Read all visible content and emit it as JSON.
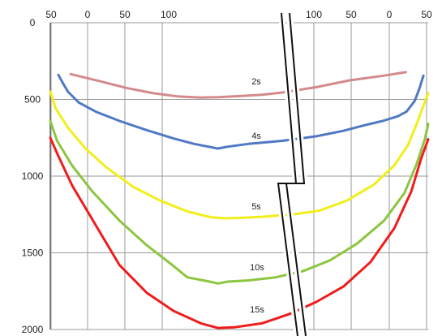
{
  "chart_data": {
    "type": "line",
    "title": "",
    "xlabel": "",
    "ylabel": "",
    "grid": true,
    "x_tick_labels": [
      "50",
      "0",
      "50",
      "100",
      "100",
      "50",
      "0",
      "50"
    ],
    "ylim": [
      0,
      2000
    ],
    "y_ticks": [
      0,
      500,
      1000,
      1500,
      2000
    ],
    "y_tick_labels": [
      "0",
      "500",
      "1000",
      "1500",
      "2000"
    ],
    "axis_break": true,
    "series": [
      {
        "name": "2s",
        "color": "#d48a8a",
        "points": [
          [
            18,
            335
          ],
          [
            60,
            380
          ],
          [
            100,
            425
          ],
          [
            140,
            460
          ],
          [
            175,
            480
          ],
          [
            210,
            488
          ],
          [
            235,
            485
          ],
          [
            270,
            478
          ],
          [
            300,
            470
          ],
          [
            330,
            455
          ],
          [
            380,
            420
          ],
          [
            430,
            375
          ],
          [
            480,
            345
          ],
          [
            512,
            322
          ]
        ]
      },
      {
        "name": "4s",
        "color": "#4f79c4",
        "points": [
          [
            0,
            340
          ],
          [
            6,
            390
          ],
          [
            14,
            450
          ],
          [
            30,
            520
          ],
          [
            55,
            580
          ],
          [
            90,
            640
          ],
          [
            130,
            700
          ],
          [
            170,
            755
          ],
          [
            200,
            790
          ],
          [
            235,
            820
          ],
          [
            250,
            808
          ],
          [
            280,
            790
          ],
          [
            330,
            770
          ],
          [
            380,
            740
          ],
          [
            420,
            705
          ],
          [
            450,
            670
          ],
          [
            478,
            640
          ],
          [
            500,
            610
          ],
          [
            513,
            580
          ],
          [
            525,
            510
          ],
          [
            532,
            430
          ],
          [
            538,
            345
          ]
        ]
      },
      {
        "name": "5s",
        "color": "#f2ee1a",
        "points": [
          [
            -12,
            450
          ],
          [
            -4,
            560
          ],
          [
            15,
            690
          ],
          [
            40,
            820
          ],
          [
            70,
            940
          ],
          [
            110,
            1070
          ],
          [
            150,
            1160
          ],
          [
            190,
            1230
          ],
          [
            225,
            1268
          ],
          [
            245,
            1275
          ],
          [
            270,
            1272
          ],
          [
            300,
            1265
          ],
          [
            345,
            1250
          ],
          [
            385,
            1225
          ],
          [
            425,
            1160
          ],
          [
            465,
            1055
          ],
          [
            495,
            930
          ],
          [
            515,
            800
          ],
          [
            528,
            660
          ],
          [
            538,
            540
          ],
          [
            545,
            460
          ]
        ]
      },
      {
        "name": "10s",
        "color": "#8cc640",
        "points": [
          [
            -12,
            640
          ],
          [
            -2,
            770
          ],
          [
            20,
            930
          ],
          [
            50,
            1100
          ],
          [
            90,
            1290
          ],
          [
            130,
            1450
          ],
          [
            165,
            1570
          ],
          [
            190,
            1660
          ],
          [
            220,
            1685
          ],
          [
            235,
            1700
          ],
          [
            250,
            1688
          ],
          [
            280,
            1680
          ],
          [
            320,
            1660
          ],
          [
            360,
            1620
          ],
          [
            400,
            1550
          ],
          [
            440,
            1440
          ],
          [
            480,
            1290
          ],
          [
            510,
            1110
          ],
          [
            528,
            920
          ],
          [
            540,
            760
          ],
          [
            545,
            660
          ]
        ]
      },
      {
        "name": "15s",
        "color": "#f01c1c",
        "points": [
          [
            -12,
            750
          ],
          [
            0,
            870
          ],
          [
            20,
            1060
          ],
          [
            55,
            1320
          ],
          [
            90,
            1580
          ],
          [
            130,
            1760
          ],
          [
            170,
            1880
          ],
          [
            210,
            1960
          ],
          [
            235,
            1990
          ],
          [
            260,
            1985
          ],
          [
            300,
            1960
          ],
          [
            340,
            1900
          ],
          [
            380,
            1820
          ],
          [
            420,
            1720
          ],
          [
            460,
            1560
          ],
          [
            495,
            1340
          ],
          [
            520,
            1100
          ],
          [
            535,
            880
          ],
          [
            545,
            760
          ]
        ]
      }
    ],
    "annotations": [
      "2s",
      "4s",
      "5s",
      "10s",
      "15s"
    ]
  }
}
